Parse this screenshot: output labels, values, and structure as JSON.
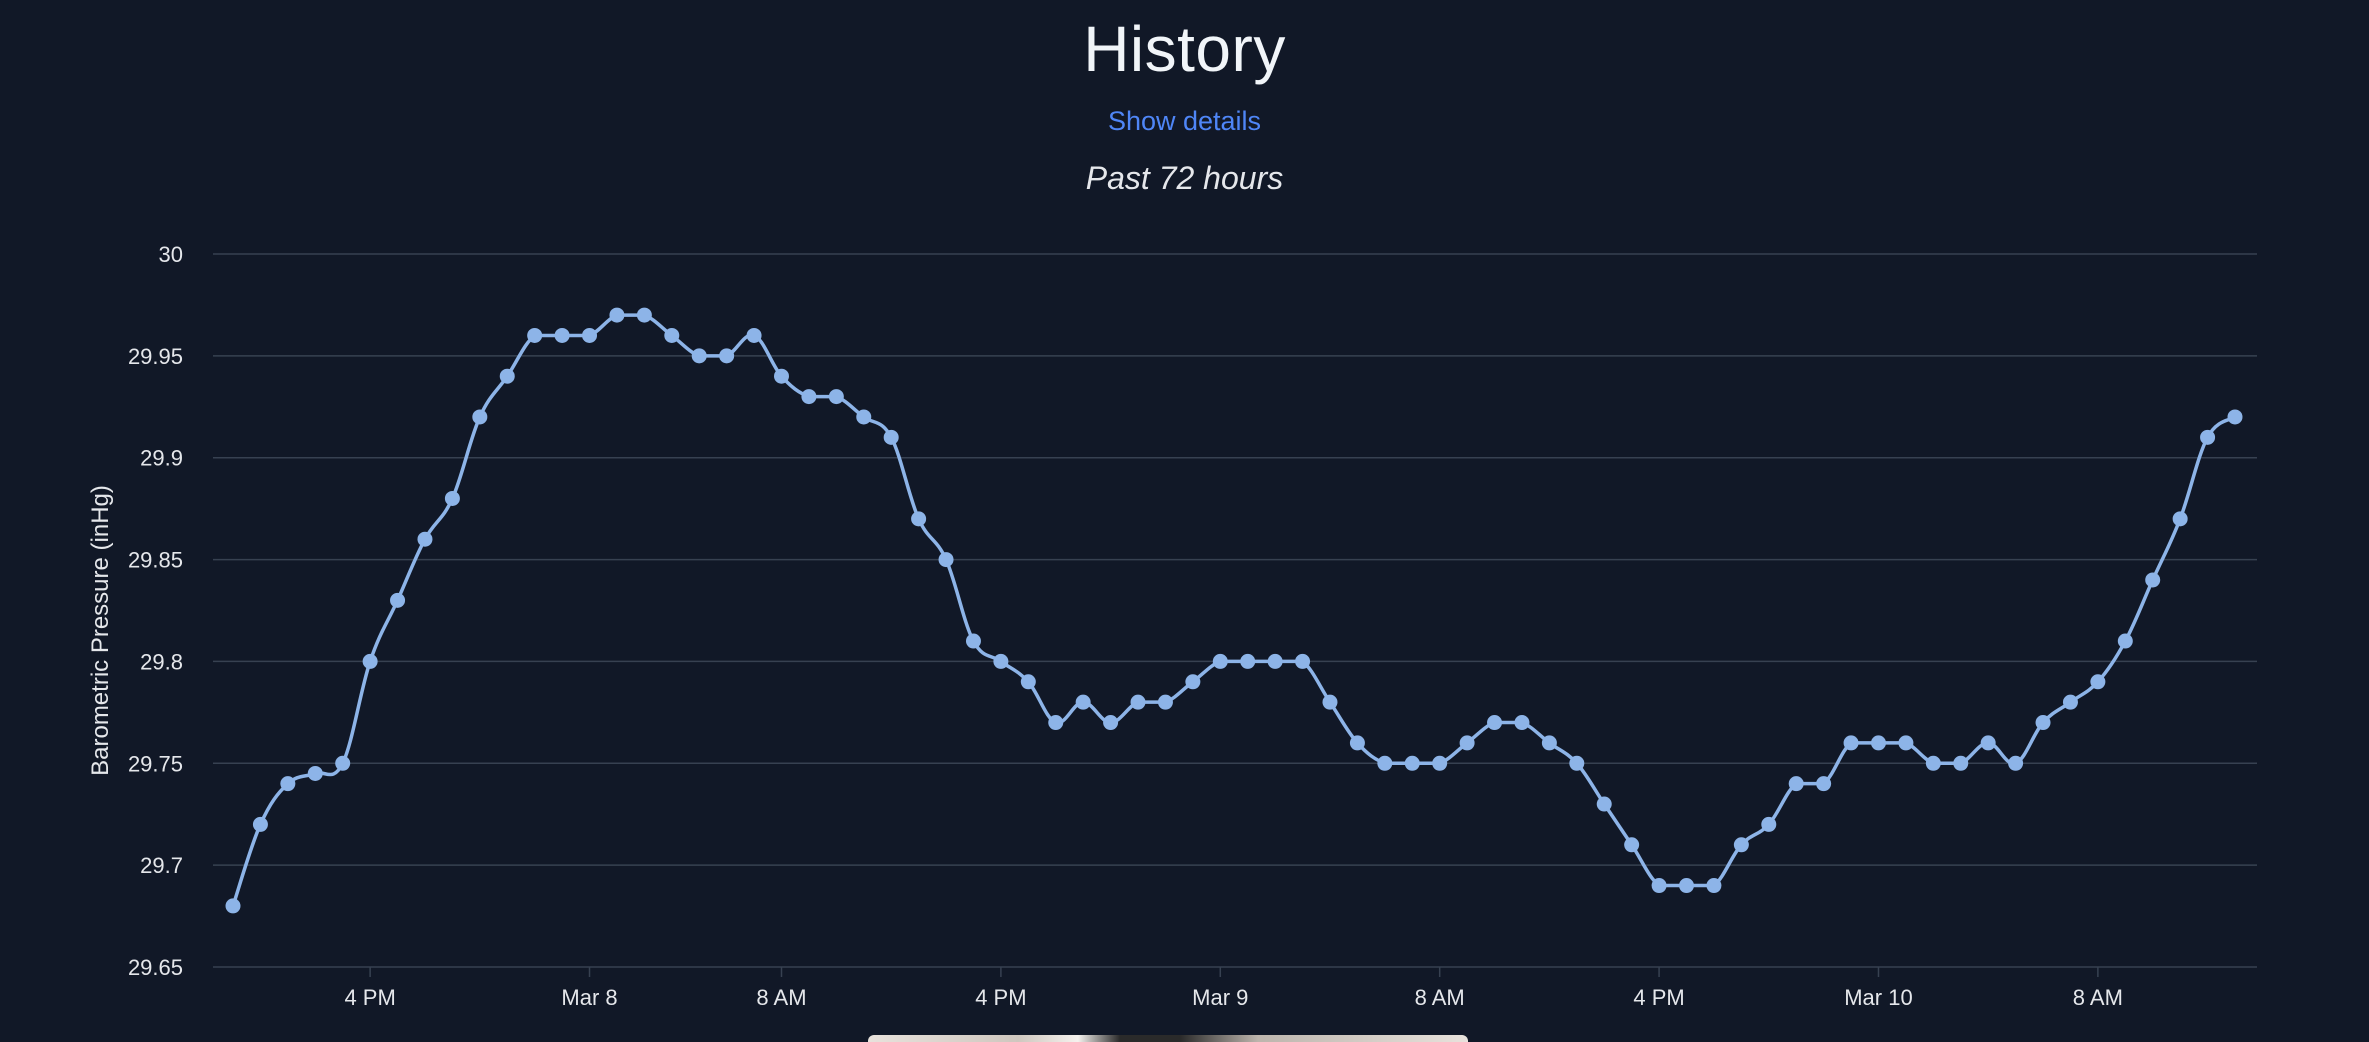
{
  "header": {
    "title": "History",
    "details_link": "Show details",
    "subtitle": "Past 72 hours"
  },
  "colors": {
    "background": "#111827",
    "line": "#8db4e8",
    "grid": "#374151",
    "link": "#4f86f7"
  },
  "chart_data": {
    "type": "line",
    "ylabel": "Barometric Pressure (inHg)",
    "xlabel": "",
    "ylim": [
      29.65,
      30
    ],
    "yticks": [
      "30",
      "29.95",
      "29.9",
      "29.85",
      "29.8",
      "29.75",
      "29.7",
      "29.65"
    ],
    "xticks": [
      {
        "label": "4 PM",
        "index": 5
      },
      {
        "label": "Mar 8",
        "index": 13
      },
      {
        "label": "8 AM",
        "index": 20
      },
      {
        "label": "4 PM",
        "index": 28
      },
      {
        "label": "Mar 9",
        "index": 36
      },
      {
        "label": "8 AM",
        "index": 44
      },
      {
        "label": "4 PM",
        "index": 52
      },
      {
        "label": "Mar 10",
        "index": 60
      },
      {
        "label": "8 AM",
        "index": 68
      }
    ],
    "grid": true,
    "legend": "none",
    "series": [
      {
        "values": [
          29.68,
          29.72,
          29.74,
          29.745,
          29.75,
          29.8,
          29.83,
          29.86,
          29.88,
          29.92,
          29.94,
          29.96,
          29.96,
          29.96,
          29.97,
          29.97,
          29.96,
          29.95,
          29.95,
          29.96,
          29.94,
          29.93,
          29.93,
          29.92,
          29.91,
          29.87,
          29.85,
          29.81,
          29.8,
          29.79,
          29.77,
          29.78,
          29.77,
          29.78,
          29.78,
          29.79,
          29.8,
          29.8,
          29.8,
          29.8,
          29.78,
          29.76,
          29.75,
          29.75,
          29.75,
          29.76,
          29.77,
          29.77,
          29.76,
          29.75,
          29.73,
          29.71,
          29.69,
          29.69,
          29.69,
          29.71,
          29.72,
          29.74,
          29.74,
          29.76,
          29.76,
          29.76,
          29.75,
          29.75,
          29.76,
          29.75,
          29.77,
          29.78,
          29.79,
          29.81,
          29.84,
          29.87,
          29.91,
          29.92
        ]
      }
    ]
  }
}
